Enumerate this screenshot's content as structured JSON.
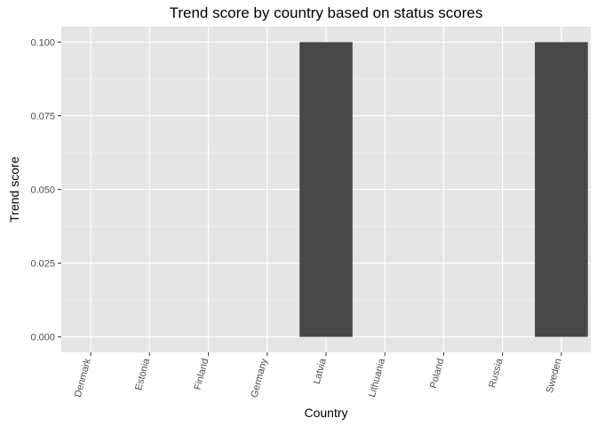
{
  "chart_data": {
    "type": "bar",
    "title": "Trend score by country based on status scores",
    "xlabel": "Country",
    "ylabel": "Trend score",
    "categories": [
      "Denmark",
      "Estonia",
      "Finland",
      "Germany",
      "Latvia",
      "Lithuania",
      "Poland",
      "Russia",
      "Sweden"
    ],
    "values": [
      0,
      0,
      0,
      0,
      0.1,
      0,
      0,
      0,
      0.1
    ],
    "ylim": [
      -0.00525,
      0.10525
    ],
    "yticks": [
      0.0,
      0.025,
      0.05,
      0.075,
      0.1
    ],
    "ytick_labels": [
      "0.000",
      "0.025",
      "0.050",
      "0.075",
      "0.100"
    ],
    "grid": true,
    "legend": "none",
    "colors": {
      "bar": "#474747",
      "panel": "#e5e5e5",
      "grid_major": "#ffffff",
      "grid_minor": "#f2f2f2",
      "tick_text": "#4d4d4d"
    }
  }
}
